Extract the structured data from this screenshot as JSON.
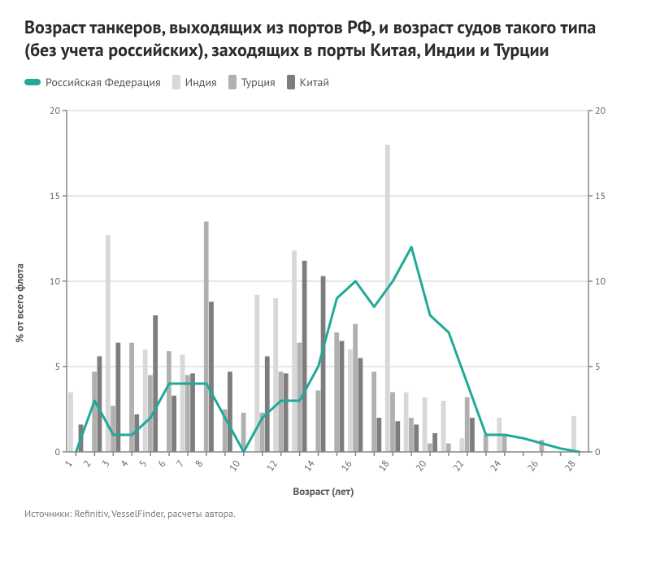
{
  "title": "Возраст танкеров, выходящих из портов РФ, и возраст судов такого типа (без учета российских), заходящих в порты Китая, Индии и Турции",
  "legend": {
    "series0": "Российская Федерация",
    "series1": "Индия",
    "series2": "Турция",
    "series3": "Китай"
  },
  "axes": {
    "ylabel": "% от всего флота",
    "xlabel": "Возраст (лет)"
  },
  "source": "Источники: Refinitiv, VesselFinder, расчеты автора.",
  "chart": {
    "type": "bar+line",
    "background_color": "#ffffff",
    "grid_color": "#cfcfcf",
    "axis_color": "#888888",
    "text_color": "#555555",
    "ylim": [
      0,
      20
    ],
    "yticks": [
      0,
      5,
      10,
      15,
      20
    ],
    "xlim": [
      1,
      28
    ],
    "categories": [
      1,
      2,
      3,
      4,
      5,
      6,
      7,
      8,
      9,
      10,
      11,
      12,
      13,
      14,
      15,
      16,
      17,
      18,
      19,
      20,
      21,
      22,
      23,
      24,
      25,
      26,
      27,
      28
    ],
    "xtick_show": [
      1,
      2,
      3,
      4,
      5,
      6,
      7,
      8,
      10,
      12,
      14,
      16,
      18,
      20,
      22,
      24,
      26,
      28
    ],
    "bar_group_width": 0.82,
    "line_width": 3,
    "series": [
      {
        "key": "russia",
        "type": "line",
        "color": "#21a99a",
        "values": [
          0.0,
          3.0,
          1.0,
          1.0,
          2.0,
          4.0,
          4.0,
          4.0,
          2.0,
          0.0,
          2.0,
          3.0,
          3.0,
          5.0,
          9.0,
          10.0,
          8.5,
          10.0,
          12.0,
          8.0,
          7.0,
          4.0,
          1.0,
          1.0,
          0.8,
          0.5,
          0.2,
          0.0
        ]
      },
      {
        "key": "india",
        "type": "bar",
        "color": "#d8d8d8",
        "values": [
          3.5,
          0.0,
          12.7,
          0.0,
          6.0,
          0.0,
          5.7,
          0.0,
          0.0,
          0.0,
          9.2,
          9.0,
          11.8,
          0.0,
          0.0,
          6.0,
          0.0,
          18.0,
          3.5,
          3.2,
          3.0,
          0.8,
          0.0,
          2.0,
          0.0,
          0.0,
          0.0,
          2.1
        ]
      },
      {
        "key": "turkey",
        "type": "bar",
        "color": "#b0b0b0",
        "values": [
          0.0,
          4.7,
          2.7,
          6.4,
          4.5,
          5.9,
          4.5,
          13.5,
          2.5,
          2.3,
          2.3,
          4.7,
          6.4,
          3.6,
          7.0,
          7.5,
          4.7,
          3.5,
          2.0,
          0.5,
          0.5,
          3.2,
          1.0,
          1.0,
          0.0,
          0.7,
          0.0,
          0.0
        ]
      },
      {
        "key": "china",
        "type": "bar",
        "color": "#7d7d7d",
        "values": [
          1.6,
          5.6,
          6.4,
          2.2,
          8.0,
          3.3,
          4.6,
          8.8,
          4.7,
          0.0,
          5.6,
          4.6,
          11.2,
          10.3,
          6.5,
          5.5,
          2.0,
          1.8,
          1.6,
          1.1,
          0.0,
          2.0,
          0.0,
          0.0,
          0.0,
          0.0,
          0.0,
          0.0
        ]
      }
    ]
  }
}
